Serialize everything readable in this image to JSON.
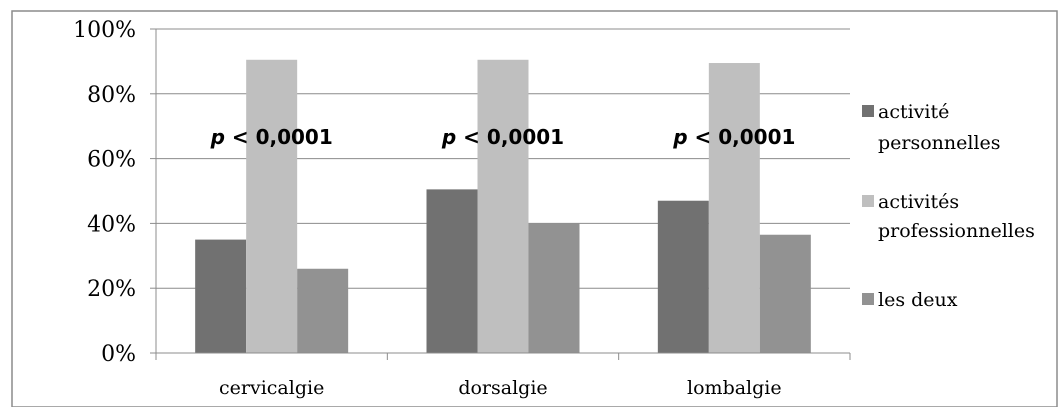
{
  "chart_data": {
    "type": "bar",
    "categories": [
      "cervicalgie",
      "dorsalgie",
      "lombalgie"
    ],
    "series": [
      {
        "name": "activité personnelles",
        "values": [
          35,
          50.5,
          47
        ],
        "color": "#717171"
      },
      {
        "name": "activités professionnelles",
        "values": [
          90.5,
          90.5,
          89.5
        ],
        "color": "#bfbfbf"
      },
      {
        "name": "les deux",
        "values": [
          26,
          40,
          36.5
        ],
        "color": "#929292"
      }
    ],
    "legend_lines": [
      [
        "activité",
        "personnelles"
      ],
      [
        "activités",
        "professionnelles"
      ],
      [
        "les deux"
      ]
    ],
    "yticks": [
      "0%",
      "20%",
      "40%",
      "60%",
      "80%",
      "100%"
    ],
    "ylim": [
      0,
      100
    ],
    "grid": true,
    "legend": "right",
    "annotations": [
      {
        "category": "cervicalgie",
        "italic": "p",
        "text": " < 0,0001"
      },
      {
        "category": "dorsalgie",
        "italic": "p",
        "text": " < 0,0001"
      },
      {
        "category": "lombalgie",
        "italic": "p",
        "text": " < 0,0001"
      }
    ]
  }
}
